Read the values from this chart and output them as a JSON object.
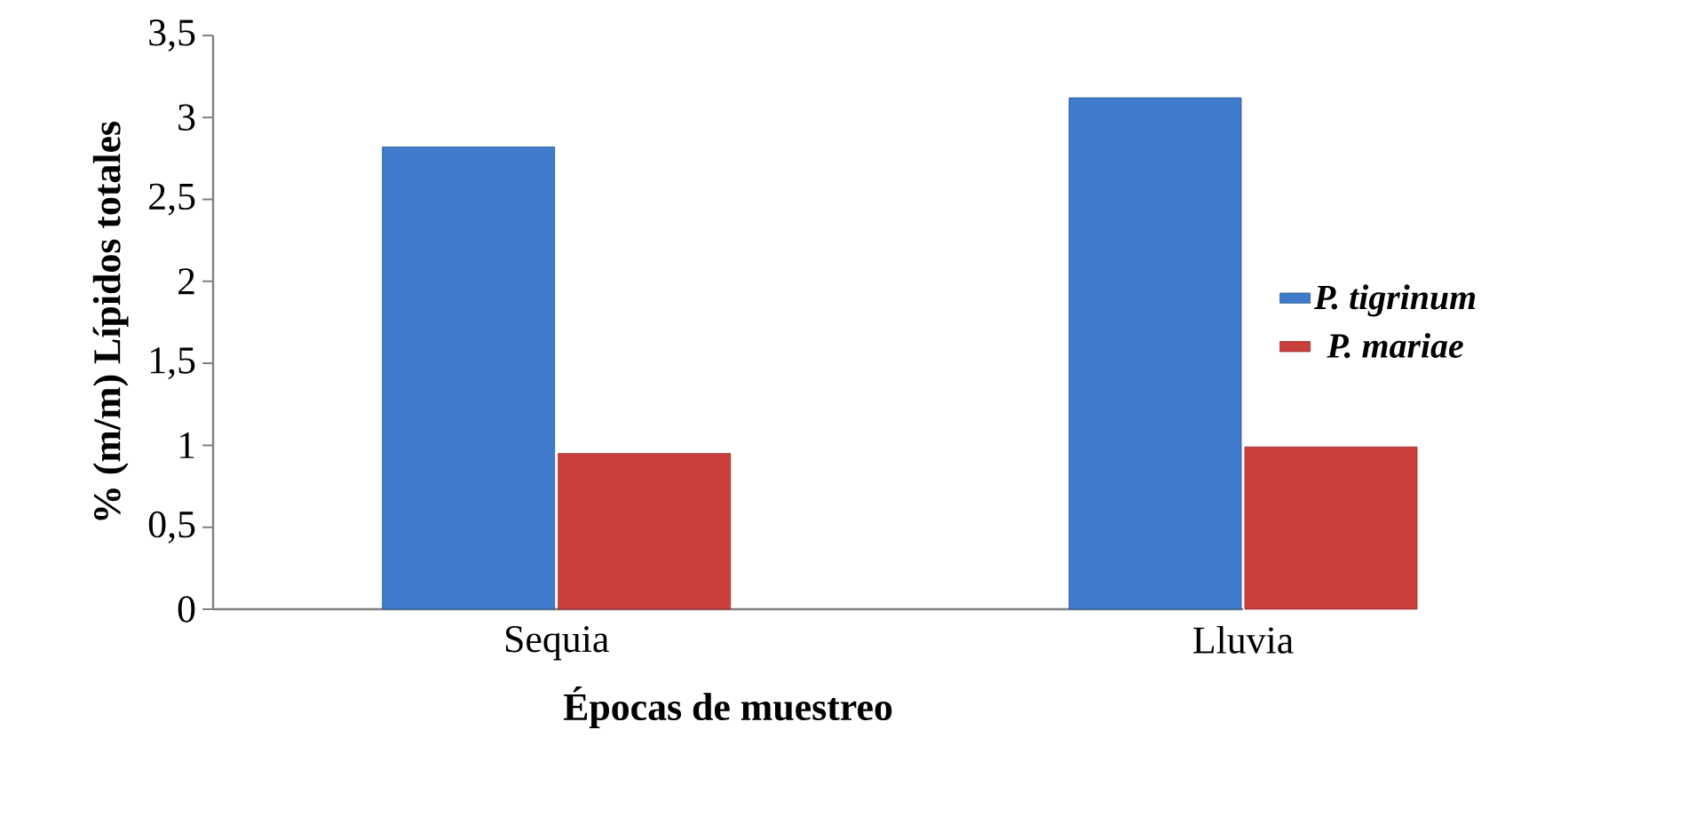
{
  "chart_data": {
    "type": "bar",
    "xlabel": "Épocas de muestreo",
    "ylabel": "% (m/m) Lípidos totales",
    "categories": [
      "Sequia",
      "Lluvia"
    ],
    "series": [
      {
        "name": "P. tigrinum",
        "color": "#3f7bcc",
        "values": [
          2.82,
          3.12
        ]
      },
      {
        "name": "P. mariae",
        "color": "#cc3f3d",
        "values": [
          0.95,
          0.99
        ]
      }
    ],
    "ylim": [
      0,
      3.5
    ],
    "yticks": [
      0,
      {
        "value": 0.5,
        "label": "0,5"
      },
      1,
      {
        "value": 1.5,
        "label": "1,5"
      },
      2,
      {
        "value": 2.5,
        "label": "2,5"
      },
      3,
      {
        "value": 3.5,
        "label": "3,5"
      }
    ],
    "grid": false,
    "legend": "right"
  }
}
